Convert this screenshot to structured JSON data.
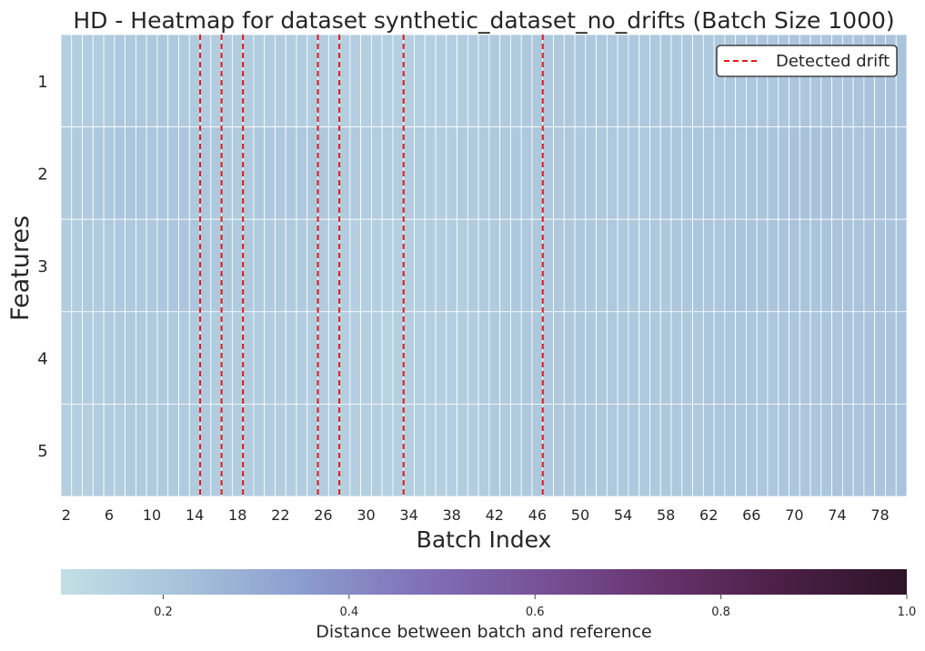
{
  "chart_data": {
    "type": "heatmap",
    "title": "HD - Heatmap for dataset synthetic_dataset_no_drifts (Batch Size 1000)",
    "xlabel": "Batch Index",
    "ylabel": "Features",
    "x_start": 2,
    "x_end": 80,
    "x_tick_labels": [
      "2",
      "6",
      "10",
      "14",
      "18",
      "22",
      "26",
      "30",
      "34",
      "38",
      "42",
      "46",
      "50",
      "54",
      "58",
      "62",
      "66",
      "70",
      "74",
      "78"
    ],
    "y_tick_labels": [
      "1",
      "2",
      "3",
      "4",
      "5"
    ],
    "values": [
      [
        0.16,
        0.17,
        0.17,
        0.17,
        0.18,
        0.19,
        0.19,
        0.19,
        0.19,
        0.19,
        0.19,
        0.18,
        0.18,
        0.17,
        0.17,
        0.17,
        0.17,
        0.17,
        0.17,
        0.17,
        0.17,
        0.17,
        0.17,
        0.17,
        0.17,
        0.16,
        0.16,
        0.16,
        0.16,
        0.16,
        0.16,
        0.16,
        0.16,
        0.16,
        0.16,
        0.16,
        0.16,
        0.17,
        0.17,
        0.17,
        0.18,
        0.18,
        0.18,
        0.19,
        0.19,
        0.19,
        0.19,
        0.19,
        0.19,
        0.19,
        0.19,
        0.19,
        0.19,
        0.19,
        0.19,
        0.19,
        0.19,
        0.19,
        0.19,
        0.19,
        0.19,
        0.19,
        0.19,
        0.19,
        0.2,
        0.2,
        0.2,
        0.2,
        0.2,
        0.2,
        0.2,
        0.2,
        0.2,
        0.2,
        0.21,
        0.21,
        0.21,
        0.21,
        0.21
      ],
      [
        0.17,
        0.18,
        0.18,
        0.19,
        0.19,
        0.2,
        0.2,
        0.2,
        0.2,
        0.2,
        0.2,
        0.2,
        0.19,
        0.19,
        0.19,
        0.18,
        0.18,
        0.18,
        0.19,
        0.19,
        0.19,
        0.19,
        0.19,
        0.19,
        0.19,
        0.18,
        0.18,
        0.18,
        0.17,
        0.17,
        0.17,
        0.17,
        0.17,
        0.17,
        0.17,
        0.17,
        0.17,
        0.18,
        0.18,
        0.18,
        0.19,
        0.19,
        0.19,
        0.19,
        0.19,
        0.19,
        0.19,
        0.19,
        0.19,
        0.19,
        0.19,
        0.19,
        0.19,
        0.19,
        0.19,
        0.19,
        0.2,
        0.2,
        0.2,
        0.2,
        0.2,
        0.2,
        0.2,
        0.2,
        0.21,
        0.21,
        0.21,
        0.21,
        0.22,
        0.22,
        0.22,
        0.22,
        0.21,
        0.21,
        0.21,
        0.21,
        0.21,
        0.21,
        0.21
      ],
      [
        0.17,
        0.17,
        0.18,
        0.18,
        0.18,
        0.19,
        0.19,
        0.19,
        0.19,
        0.2,
        0.2,
        0.2,
        0.2,
        0.19,
        0.19,
        0.19,
        0.18,
        0.18,
        0.18,
        0.18,
        0.18,
        0.18,
        0.18,
        0.18,
        0.18,
        0.17,
        0.17,
        0.16,
        0.16,
        0.16,
        0.16,
        0.16,
        0.16,
        0.16,
        0.17,
        0.17,
        0.17,
        0.17,
        0.18,
        0.18,
        0.18,
        0.18,
        0.19,
        0.19,
        0.19,
        0.19,
        0.19,
        0.19,
        0.19,
        0.19,
        0.19,
        0.19,
        0.19,
        0.19,
        0.19,
        0.19,
        0.19,
        0.2,
        0.2,
        0.2,
        0.2,
        0.2,
        0.21,
        0.21,
        0.21,
        0.21,
        0.21,
        0.21,
        0.21,
        0.21,
        0.21,
        0.21,
        0.21,
        0.21,
        0.21,
        0.21,
        0.21,
        0.21,
        0.21
      ],
      [
        0.16,
        0.17,
        0.17,
        0.17,
        0.18,
        0.18,
        0.18,
        0.18,
        0.18,
        0.18,
        0.18,
        0.18,
        0.18,
        0.18,
        0.17,
        0.17,
        0.17,
        0.17,
        0.17,
        0.17,
        0.17,
        0.17,
        0.17,
        0.17,
        0.17,
        0.16,
        0.16,
        0.16,
        0.16,
        0.16,
        0.15,
        0.16,
        0.16,
        0.16,
        0.16,
        0.16,
        0.16,
        0.17,
        0.17,
        0.17,
        0.18,
        0.18,
        0.18,
        0.19,
        0.19,
        0.19,
        0.19,
        0.19,
        0.19,
        0.19,
        0.19,
        0.19,
        0.19,
        0.19,
        0.19,
        0.19,
        0.19,
        0.19,
        0.19,
        0.19,
        0.2,
        0.2,
        0.2,
        0.2,
        0.2,
        0.2,
        0.2,
        0.2,
        0.2,
        0.2,
        0.2,
        0.2,
        0.2,
        0.21,
        0.21,
        0.21,
        0.21,
        0.21,
        0.21
      ],
      [
        0.16,
        0.16,
        0.16,
        0.17,
        0.17,
        0.17,
        0.18,
        0.18,
        0.18,
        0.18,
        0.18,
        0.18,
        0.18,
        0.18,
        0.17,
        0.17,
        0.17,
        0.17,
        0.17,
        0.17,
        0.17,
        0.17,
        0.17,
        0.17,
        0.17,
        0.16,
        0.16,
        0.16,
        0.16,
        0.16,
        0.16,
        0.16,
        0.16,
        0.16,
        0.16,
        0.16,
        0.16,
        0.17,
        0.17,
        0.17,
        0.18,
        0.18,
        0.18,
        0.19,
        0.19,
        0.19,
        0.19,
        0.19,
        0.19,
        0.19,
        0.19,
        0.19,
        0.19,
        0.19,
        0.19,
        0.19,
        0.19,
        0.19,
        0.19,
        0.19,
        0.2,
        0.2,
        0.2,
        0.2,
        0.2,
        0.2,
        0.2,
        0.2,
        0.2,
        0.2,
        0.2,
        0.2,
        0.21,
        0.21,
        0.21,
        0.21,
        0.21,
        0.21,
        0.21
      ]
    ],
    "drift_batches": [
      14.5,
      16.5,
      18.5,
      25.5,
      27.5,
      33.5,
      46.5
    ],
    "drift_color": "#e31a1c",
    "legend": {
      "label": "Detected drift",
      "position": "top-right"
    },
    "colorbar": {
      "label": "Distance between batch and reference",
      "range": [
        0.09,
        1.0
      ],
      "tick_labels": [
        "0.2",
        "0.4",
        "0.6",
        "0.8",
        "1.0"
      ],
      "colormap": [
        "#c3dfe5",
        "#a8c2db",
        "#8b9dcf",
        "#8170b7",
        "#775096",
        "#66326b",
        "#4a1f45",
        "#2e1429"
      ]
    }
  }
}
